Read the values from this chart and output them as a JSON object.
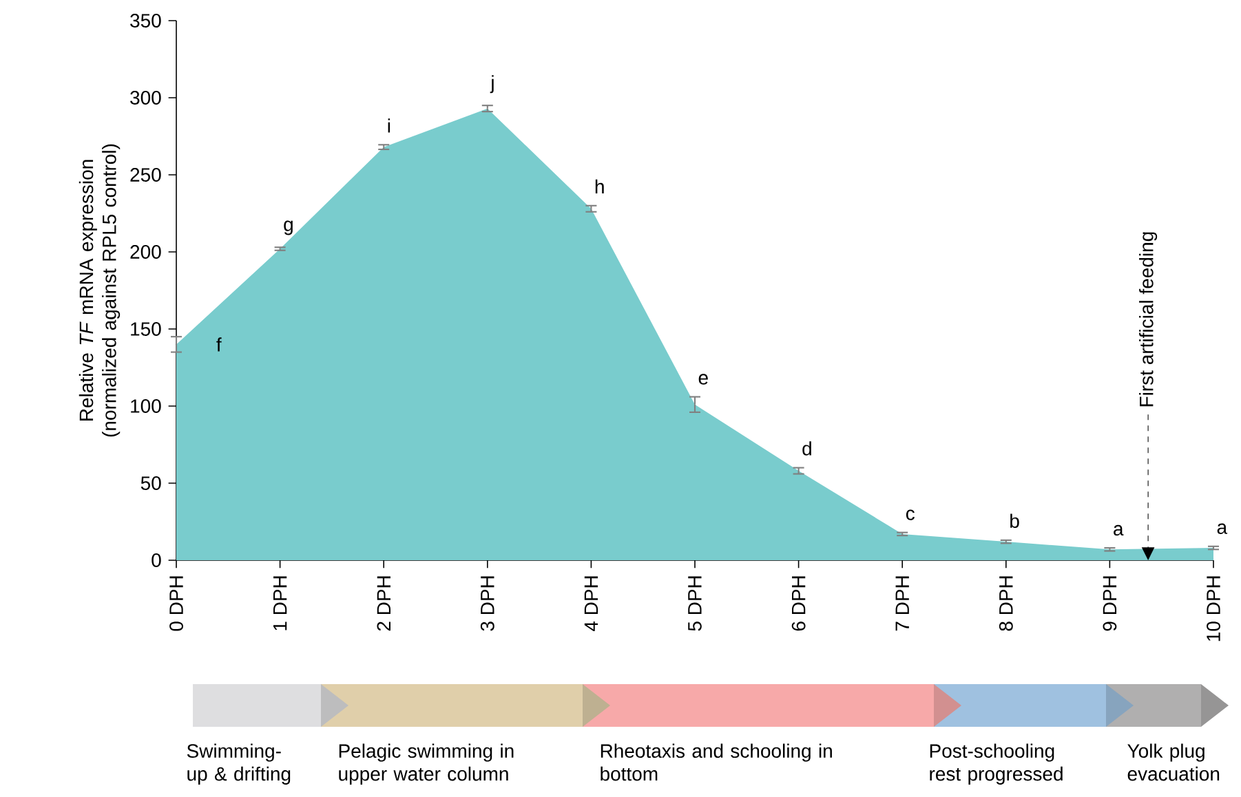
{
  "chart_data": {
    "type": "area",
    "ylabel": "Relative *TF* mRNA expression (normalized against RPL5 control)",
    "x": [
      0,
      1,
      2,
      3,
      4,
      5,
      6,
      7,
      8,
      9,
      10
    ],
    "values": [
      140,
      202,
      268,
      293,
      228,
      101,
      58,
      17,
      12,
      7,
      8
    ],
    "errors": [
      5,
      1,
      1.5,
      2,
      2,
      5,
      2,
      1,
      1,
      1,
      1
    ],
    "color": "#79cccd",
    "xlim": [
      0,
      10
    ],
    "xticks": [
      {
        "value": 0,
        "label": "0 DPH"
      },
      {
        "value": 1,
        "label": "1 DPH"
      },
      {
        "value": 2,
        "label": "2 DPH"
      },
      {
        "value": 3,
        "label": "3 DPH"
      },
      {
        "value": 4,
        "label": "4 DPH"
      },
      {
        "value": 5,
        "label": "5 DPH"
      },
      {
        "value": 6,
        "label": "6 DPH"
      },
      {
        "value": 7,
        "label": "7 DPH"
      },
      {
        "value": 8,
        "label": "8 DPH"
      },
      {
        "value": 9,
        "label": "9 DPH"
      },
      {
        "value": 10,
        "label": "10 DPH"
      }
    ],
    "ylim": [
      0,
      350
    ],
    "yticks": [
      0,
      50,
      100,
      150,
      200,
      250,
      300,
      350
    ],
    "annotations": [
      {
        "text": "f",
        "x": 0,
        "y": 140
      },
      {
        "text": "g",
        "x": 1,
        "y": 202
      },
      {
        "text": "i",
        "x": 2,
        "y": 268
      },
      {
        "text": "j",
        "x": 3,
        "y": 293
      },
      {
        "text": "h",
        "x": 4,
        "y": 228
      },
      {
        "text": "e",
        "x": 5,
        "y": 101
      },
      {
        "text": "d",
        "x": 6,
        "y": 58
      },
      {
        "text": "c",
        "x": 7,
        "y": 17
      },
      {
        "text": "b",
        "x": 8,
        "y": 12
      },
      {
        "text": "a",
        "x": 9,
        "y": 7
      },
      {
        "text": "a",
        "x": 10,
        "y": 8
      },
      "Swimming-up & drifting",
      "Pelagic swimming in upper water column",
      "Rheotaxis and schooling in bottom",
      "Post-schooling rest progressed",
      "Yolk plug evacuation"
    ],
    "ref_lines": [
      {
        "axis": "x",
        "value": 9.37,
        "label": "First artificial feeding",
        "line_style": "dashed"
      }
    ],
    "grid": false,
    "marker": "none"
  }
}
